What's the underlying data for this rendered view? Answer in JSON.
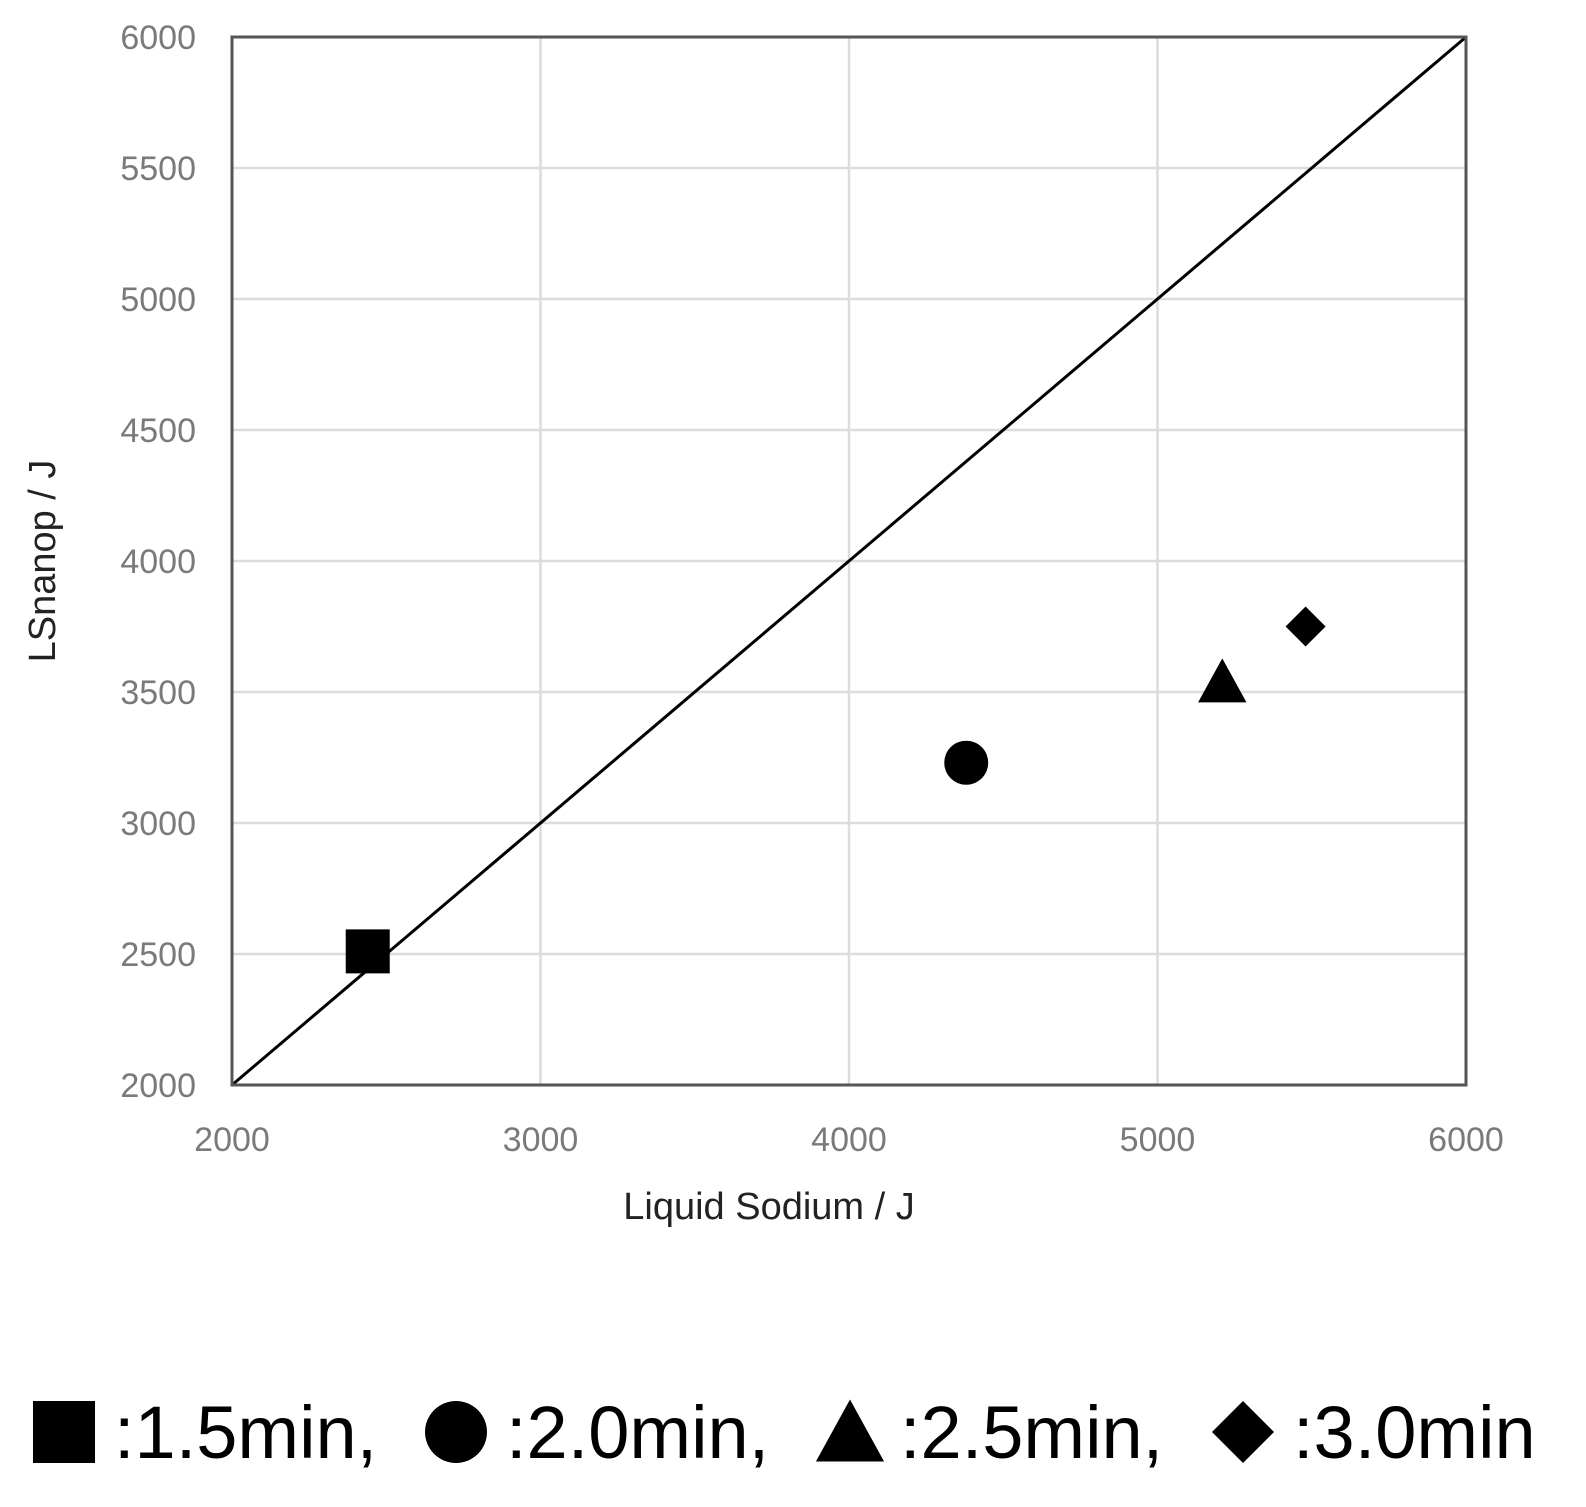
{
  "chart_data": {
    "type": "scatter",
    "title": "",
    "xlabel": "Liquid Sodium / J",
    "ylabel": "LSnanop / J",
    "xlim": [
      2000,
      6000
    ],
    "ylim": [
      2000,
      6000
    ],
    "x_ticks": [
      "2000",
      "3000",
      "4000",
      "5000",
      "6000"
    ],
    "y_ticks": [
      "2000",
      "2500",
      "3000",
      "3500",
      "4000",
      "4500",
      "5000",
      "5500",
      "6000"
    ],
    "grid": true,
    "reference_line": {
      "from": [
        2000,
        2000
      ],
      "to": [
        6000,
        6000
      ]
    },
    "marker_color": "#000000",
    "series": [
      {
        "name": "1.5min",
        "marker": "square",
        "x": [
          2440
        ],
        "y": [
          2510
        ]
      },
      {
        "name": "2.0min",
        "marker": "circle",
        "x": [
          4380
        ],
        "y": [
          3230
        ]
      },
      {
        "name": "2.5min",
        "marker": "triangle",
        "x": [
          5210
        ],
        "y": [
          3540
        ]
      },
      {
        "name": "3.0min",
        "marker": "diamond",
        "x": [
          5480
        ],
        "y": [
          3750
        ]
      }
    ],
    "legend": {
      "placement": "bottom",
      "entries": [
        {
          "marker": "square",
          "label": ":1.5min,"
        },
        {
          "marker": "circle",
          "label": ":2.0min,"
        },
        {
          "marker": "triangle",
          "label": ":2.5min,"
        },
        {
          "marker": "diamond",
          "label": ":3.0min"
        }
      ]
    }
  }
}
